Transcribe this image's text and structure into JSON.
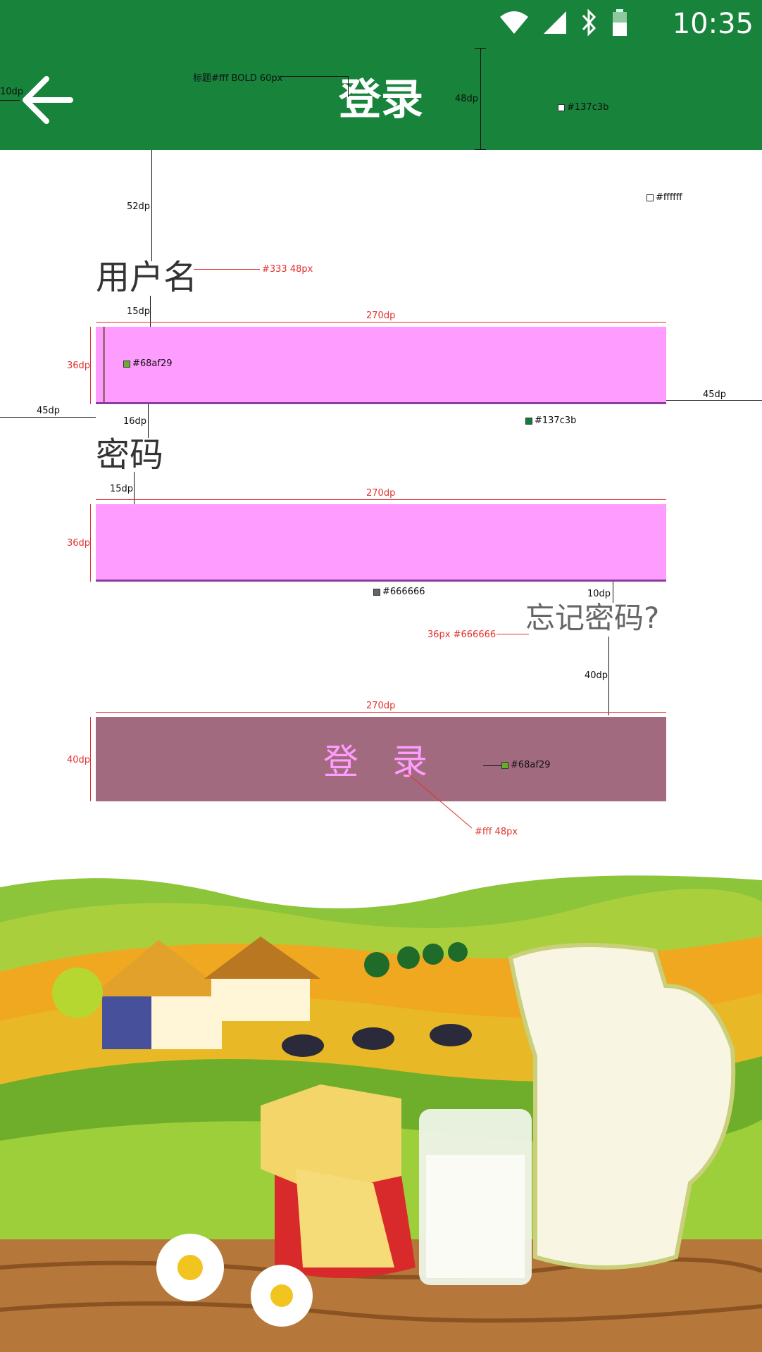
{
  "status_bar": {
    "time": "10:35"
  },
  "app_bar": {
    "title": "登录",
    "color": "#137c3b"
  },
  "form": {
    "username_label": "用户名",
    "password_label": "密码",
    "forgot_link": "忘记密码?",
    "login_button": "登 录"
  },
  "annotations": {
    "title_spec": "标题#fff BOLD 60px",
    "appbar_height": "48dp",
    "appbar_color": "#137c3b",
    "back_margin": "10dp",
    "bg_color": "#ffffff",
    "gap_top": "52dp",
    "label_spec": "#333 48px",
    "gap_label_field_1": "15dp",
    "field_width_1": "270dp",
    "field_height_1": "36dp",
    "cursor_color": "#68af29",
    "underline_color": "#137c3b",
    "right_margin": "45dp",
    "left_margin": "45dp",
    "gap_field_label": "16dp",
    "gap_label_field_2": "15dp",
    "field_width_2": "270dp",
    "field_height_2": "36dp",
    "underline_color_2": "#666666",
    "gap_forgot": "10dp",
    "forgot_spec": "36px #666666",
    "gap_button": "40dp",
    "button_width": "270dp",
    "button_height": "40dp",
    "button_color": "#68af29",
    "button_text_spec": "#fff 48px"
  }
}
